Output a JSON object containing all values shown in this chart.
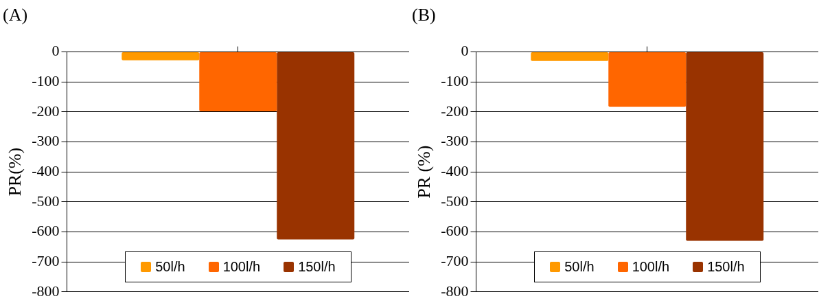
{
  "chart_data": [
    {
      "type": "bar",
      "title": "(A)",
      "ylabel": "PR(%)",
      "categories": [
        null
      ],
      "series": [
        {
          "name": "50l/h",
          "color": "#ff9900",
          "values": [
            -28
          ]
        },
        {
          "name": "100l/h",
          "color": "#ff6600",
          "values": [
            -198
          ]
        },
        {
          "name": "150l/h",
          "color": "#993300",
          "values": [
            -625
          ]
        }
      ],
      "ylim": [
        -800,
        0
      ],
      "yticks": [
        -800,
        -700,
        -600,
        -500,
        -400,
        -300,
        -200,
        -100,
        0
      ],
      "grid": "y",
      "legend": "bottom"
    },
    {
      "type": "bar",
      "title": "(B)",
      "ylabel": "PR (%)",
      "categories": [
        null
      ],
      "series": [
        {
          "name": "50l/h",
          "color": "#ff9900",
          "values": [
            -30
          ]
        },
        {
          "name": "100l/h",
          "color": "#ff6600",
          "values": [
            -183
          ]
        },
        {
          "name": "150l/h",
          "color": "#993300",
          "values": [
            -630
          ]
        }
      ],
      "ylim": [
        -800,
        0
      ],
      "yticks": [
        -800,
        -700,
        -600,
        -500,
        -400,
        -300,
        -200,
        -100,
        0
      ],
      "grid": "y",
      "legend": "bottom"
    }
  ]
}
